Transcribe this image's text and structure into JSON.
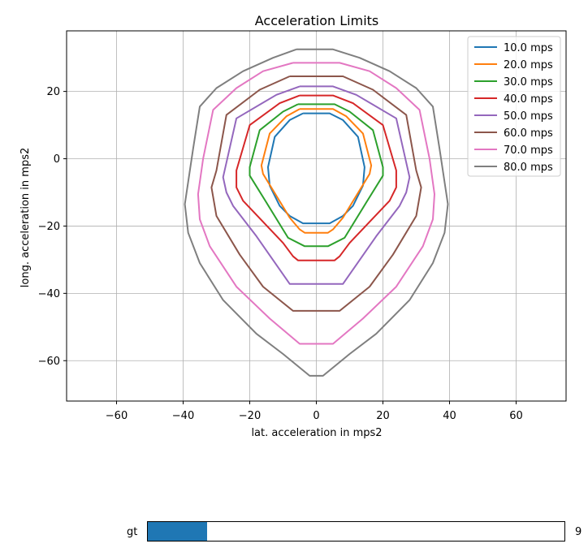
{
  "chart_data": {
    "type": "line",
    "title": "Acceleration Limits",
    "xlabel": "lat. acceleration in mps2",
    "ylabel": "long. acceleration in mps2",
    "xlim": [
      -75,
      75
    ],
    "ylim": [
      -72,
      38
    ],
    "xticks": [
      -60,
      -40,
      -20,
      0,
      20,
      40,
      60
    ],
    "yticks": [
      -60,
      -40,
      -20,
      0,
      20
    ],
    "grid": true,
    "legend_position": "top-right",
    "series": [
      {
        "name": "10.0 mps",
        "color": "#1f77b4",
        "points": [
          [
            -4,
            13.5
          ],
          [
            4,
            13.5
          ],
          [
            8,
            11.5
          ],
          [
            12.5,
            6.5
          ],
          [
            14.5,
            -2.5
          ],
          [
            14,
            -8
          ],
          [
            11,
            -14
          ],
          [
            8,
            -17
          ],
          [
            4,
            -19.2
          ],
          [
            -4,
            -19.2
          ],
          [
            -8,
            -17
          ],
          [
            -11,
            -14
          ],
          [
            -14,
            -8
          ],
          [
            -14.5,
            -2.5
          ],
          [
            -12.5,
            6.5
          ],
          [
            -8,
            11.5
          ],
          [
            -4,
            13.5
          ]
        ]
      },
      {
        "name": "20.0 mps",
        "color": "#ff7f0e",
        "points": [
          [
            -5,
            14.8
          ],
          [
            5,
            14.8
          ],
          [
            9,
            12.6
          ],
          [
            14,
            7.5
          ],
          [
            16.5,
            -2
          ],
          [
            16,
            -4.5
          ],
          [
            12,
            -11
          ],
          [
            8,
            -17.5
          ],
          [
            5,
            -21
          ],
          [
            3.5,
            -22
          ],
          [
            -3.5,
            -22
          ],
          [
            -5,
            -21
          ],
          [
            -8,
            -17.5
          ],
          [
            -12,
            -11
          ],
          [
            -16,
            -4.5
          ],
          [
            -16.5,
            -2
          ],
          [
            -14,
            7.5
          ],
          [
            -9,
            12.6
          ],
          [
            -5,
            14.8
          ]
        ]
      },
      {
        "name": "30.0 mps",
        "color": "#2ca02c",
        "points": [
          [
            -5.5,
            16.2
          ],
          [
            5.5,
            16.2
          ],
          [
            10,
            14
          ],
          [
            17,
            8.5
          ],
          [
            20,
            -2.5
          ],
          [
            20,
            -5
          ],
          [
            15,
            -13
          ],
          [
            8.5,
            -23.5
          ],
          [
            3.5,
            -26
          ],
          [
            -3.5,
            -26
          ],
          [
            -8.5,
            -23.5
          ],
          [
            -15,
            -13
          ],
          [
            -20,
            -5
          ],
          [
            -20,
            -2.5
          ],
          [
            -17,
            8.5
          ],
          [
            -10,
            14
          ],
          [
            -5.5,
            16.2
          ]
        ]
      },
      {
        "name": "40.0 mps",
        "color": "#d62728",
        "points": [
          [
            -5,
            18.8
          ],
          [
            5,
            18.8
          ],
          [
            11,
            16.5
          ],
          [
            20,
            10
          ],
          [
            24,
            -3.5
          ],
          [
            24,
            -8.5
          ],
          [
            22,
            -12.5
          ],
          [
            10,
            -25
          ],
          [
            7,
            -29
          ],
          [
            5.5,
            -30.2
          ],
          [
            -5.5,
            -30.2
          ],
          [
            -7,
            -29
          ],
          [
            -10,
            -25
          ],
          [
            -22,
            -12.5
          ],
          [
            -24,
            -8.5
          ],
          [
            -24,
            -3.5
          ],
          [
            -20,
            10
          ],
          [
            -11,
            16.5
          ],
          [
            -5,
            18.8
          ]
        ]
      },
      {
        "name": "50.0 mps",
        "color": "#9467bd",
        "points": [
          [
            -5,
            21.5
          ],
          [
            5,
            21.5
          ],
          [
            12,
            19
          ],
          [
            24,
            12
          ],
          [
            28,
            -5.5
          ],
          [
            27,
            -10
          ],
          [
            25,
            -14
          ],
          [
            18,
            -23
          ],
          [
            8,
            -37.2
          ],
          [
            -8,
            -37.2
          ],
          [
            -18,
            -23
          ],
          [
            -25,
            -14
          ],
          [
            -27,
            -10
          ],
          [
            -28,
            -5.5
          ],
          [
            -24,
            12
          ],
          [
            -12,
            19
          ],
          [
            -5,
            21.5
          ]
        ]
      },
      {
        "name": "60.0 mps",
        "color": "#8c564b",
        "points": [
          [
            -8,
            24.5
          ],
          [
            8,
            24.5
          ],
          [
            17,
            20.5
          ],
          [
            27,
            13
          ],
          [
            30,
            -3.5
          ],
          [
            31.5,
            -8.5
          ],
          [
            30,
            -17
          ],
          [
            23,
            -28.5
          ],
          [
            16,
            -38
          ],
          [
            7,
            -45.2
          ],
          [
            -7,
            -45.2
          ],
          [
            -16,
            -38
          ],
          [
            -23,
            -28.5
          ],
          [
            -30,
            -17
          ],
          [
            -31.5,
            -8.5
          ],
          [
            -30,
            -3.5
          ],
          [
            -27,
            13
          ],
          [
            -17,
            20.5
          ],
          [
            -8,
            24.5
          ]
        ]
      },
      {
        "name": "70.0 mps",
        "color": "#e377c2",
        "points": [
          [
            -7,
            28.5
          ],
          [
            7,
            28.5
          ],
          [
            16,
            26
          ],
          [
            24,
            21
          ],
          [
            31,
            14.5
          ],
          [
            34,
            0
          ],
          [
            35.5,
            -10.5
          ],
          [
            35,
            -18
          ],
          [
            32,
            -26
          ],
          [
            24,
            -38
          ],
          [
            14,
            -47.5
          ],
          [
            5,
            -55
          ],
          [
            -5,
            -55
          ],
          [
            -14,
            -47.5
          ],
          [
            -24,
            -38
          ],
          [
            -32,
            -26
          ],
          [
            -35,
            -18
          ],
          [
            -35.5,
            -10.5
          ],
          [
            -34,
            0
          ],
          [
            -31,
            14.5
          ],
          [
            -24,
            21
          ],
          [
            -16,
            26
          ],
          [
            -7,
            28.5
          ]
        ]
      },
      {
        "name": "80.0 mps",
        "color": "#7f7f7f",
        "points": [
          [
            -6,
            32.5
          ],
          [
            5,
            32.5
          ],
          [
            13,
            30
          ],
          [
            22,
            26
          ],
          [
            30,
            21
          ],
          [
            35,
            15.5
          ],
          [
            37,
            3
          ],
          [
            39.5,
            -13.5
          ],
          [
            38.5,
            -22
          ],
          [
            35,
            -31
          ],
          [
            28,
            -42
          ],
          [
            18,
            -52
          ],
          [
            10,
            -58
          ],
          [
            2,
            -64.5
          ],
          [
            -2,
            -64.5
          ],
          [
            -10,
            -58
          ],
          [
            -18,
            -52
          ],
          [
            -28,
            -42
          ],
          [
            -35,
            -31
          ],
          [
            -38.5,
            -22
          ],
          [
            -39.5,
            -13.5
          ],
          [
            -37,
            3
          ],
          [
            -35,
            15.5
          ],
          [
            -30,
            21
          ],
          [
            -22,
            26
          ],
          [
            -13,
            30
          ],
          [
            -6,
            32.5
          ]
        ]
      }
    ]
  },
  "slider": {
    "label": "gt",
    "value_text": "9",
    "fill_fraction": 0.143,
    "fill_color": "#1f77b4"
  }
}
